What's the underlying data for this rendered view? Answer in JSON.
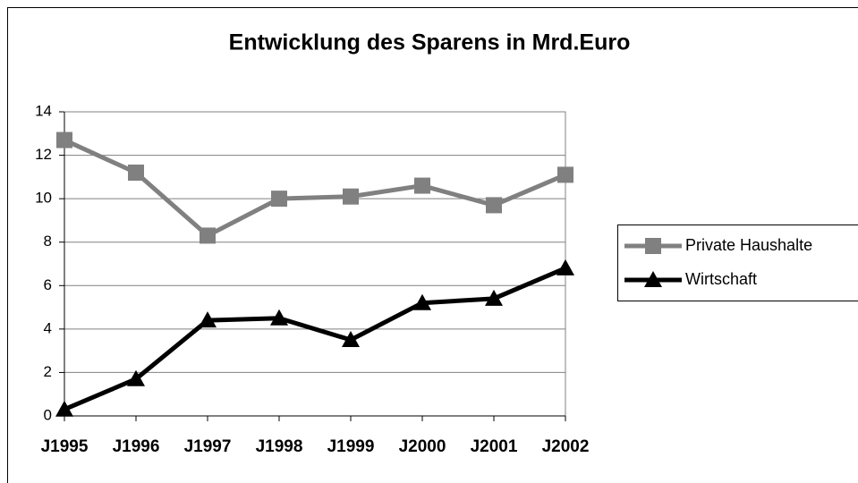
{
  "chart_data": {
    "type": "line",
    "title": "Entwicklung des Sparens in Mrd.Euro",
    "categories": [
      "J1995",
      "J1996",
      "J1997",
      "J1998",
      "J1999",
      "J2000",
      "J2001",
      "J2002"
    ],
    "series": [
      {
        "name": "Private Haushalte",
        "color": "#808080",
        "marker": "square",
        "values": [
          12.7,
          11.2,
          8.3,
          10.0,
          10.1,
          10.6,
          9.7,
          11.1
        ]
      },
      {
        "name": "Wirtschaft",
        "color": "#000000",
        "marker": "triangle",
        "values": [
          0.3,
          1.7,
          4.4,
          4.5,
          3.5,
          5.2,
          5.4,
          6.8
        ]
      }
    ],
    "ylim": [
      0,
      14
    ],
    "yticks": [
      0,
      2,
      4,
      6,
      8,
      10,
      12,
      14
    ],
    "grid": true,
    "legend": "right"
  }
}
